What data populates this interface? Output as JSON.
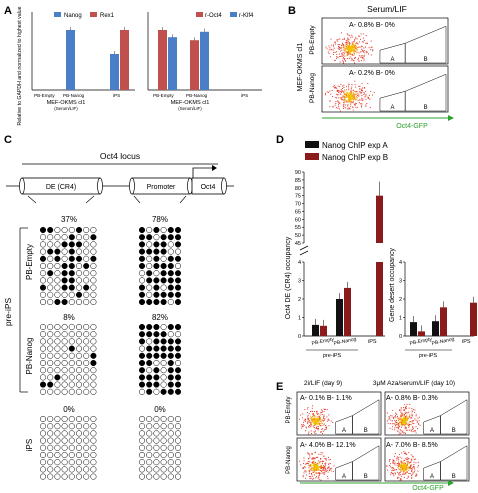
{
  "panel_letters": [
    "A",
    "B",
    "C",
    "D",
    "E"
  ],
  "panelA": {
    "ylabel": "Relative to GAPDH and normalized to highest value",
    "left": {
      "legend": [
        "Nanog",
        "Rex1"
      ],
      "categories": [
        "PB-Empty",
        "PB-Nanog",
        "iPS"
      ],
      "group_label": "MEF-OKMS cl1",
      "group_sub": "(Serum/LIF)"
    },
    "right": {
      "legend": [
        "r-Oct4",
        "r-Klf4"
      ],
      "categories": [
        "PB-Empty",
        "PB-Nanog",
        "iPS"
      ],
      "group_label": "MEF-OKMS cl1",
      "group_sub": "(Serum/LIF)"
    }
  },
  "panelB": {
    "title": "Serum/LIF",
    "side_label": "MEF-OKMS cl1",
    "rows": [
      {
        "label": "PB-Empty",
        "stats": "A- 0.8% B- 0%"
      },
      {
        "label": "PB-Nanog",
        "stats": "A- 0.2% B- 0%"
      }
    ],
    "gate_a": "A",
    "gate_b": "B",
    "xlabel": "Oct4-GFP"
  },
  "panelC": {
    "locus_title": "Oct4 locus",
    "regions": [
      "DE (CR4)",
      "Promoter",
      "Oct4"
    ],
    "group_label": "pre-iPS",
    "rows": [
      {
        "label": "PB-Empty",
        "de_pct": "37%",
        "pr_pct": "78%"
      },
      {
        "label": "PB-Nanog",
        "de_pct": "8%",
        "pr_pct": "82%"
      },
      {
        "label": "iPS",
        "de_pct": "0%",
        "pr_pct": "0%"
      }
    ]
  },
  "panelD": {
    "legend": [
      "Nanog ChIP exp A",
      "Nanog ChIP exp B"
    ],
    "colors": {
      "expA": "#111111",
      "expB": "#8b1a1a"
    },
    "left_ylabel": "Oct4 DE (CR4) occupancy",
    "right_ylabel": "Gene desert occupancy",
    "left_ticks_low": [
      "0",
      "1",
      "2",
      "3",
      "4"
    ],
    "left_ticks_high": [
      "45",
      "50",
      "55",
      "60",
      "65",
      "70",
      "75",
      "80",
      "85",
      "90"
    ],
    "right_ticks": [
      "0",
      "1",
      "2",
      "3",
      "4"
    ],
    "categories": [
      "PB-Empty",
      "PB-Nanog",
      "iPS"
    ],
    "group_label": "pre-iPS"
  },
  "panelE": {
    "col_titles": [
      "2i/LIF (day 9)",
      "3μM Aza/serum/LIF (day 10)"
    ],
    "row_labels": [
      "PB-Empty",
      "PB-Nanog"
    ],
    "stats": [
      [
        "A- 0.1% B- 1.1%",
        "A- 0.8% B- 0.3%"
      ],
      [
        "A- 4.0% B- 12.1%",
        "A- 7.0% B- 8.5%"
      ]
    ],
    "gate_a": "A",
    "gate_b": "B",
    "xlabel": "Oct4-GFP"
  },
  "chart_data": [
    {
      "type": "bar",
      "panel": "A-left",
      "categories": [
        "PB-Empty",
        "PB-Nanog",
        "iPS"
      ],
      "series": [
        {
          "name": "Nanog",
          "values": [
            0,
            1.0,
            0.6
          ]
        },
        {
          "name": "Rex1",
          "values": [
            0,
            0,
            1.0
          ]
        }
      ],
      "ylim": [
        0,
        1.2
      ]
    },
    {
      "type": "bar",
      "panel": "A-right",
      "categories": [
        "PB-Empty",
        "PB-Nanog",
        "iPS"
      ],
      "series": [
        {
          "name": "r-Oct4",
          "values": [
            1.0,
            0.83,
            0
          ]
        },
        {
          "name": "r-Klf4",
          "values": [
            0.88,
            0.97,
            0
          ]
        }
      ],
      "ylim": [
        0,
        1.2
      ]
    },
    {
      "type": "bar",
      "panel": "D-left",
      "ylabel": "Oct4 DE (CR4) occupancy",
      "categories": [
        "PB-Empty",
        "PB-Nanog",
        "iPS"
      ],
      "series": [
        {
          "name": "Nanog ChIP exp A",
          "values": [
            0.6,
            2.0,
            null
          ]
        },
        {
          "name": "Nanog ChIP exp B",
          "values": [
            0.55,
            2.6,
            75
          ]
        }
      ]
    },
    {
      "type": "bar",
      "panel": "D-right",
      "ylabel": "Gene desert occupancy",
      "categories": [
        "PB-Empty",
        "PB-Nanog",
        "iPS"
      ],
      "series": [
        {
          "name": "Nanog ChIP exp A",
          "values": [
            0.75,
            0.8,
            null
          ]
        },
        {
          "name": "Nanog ChIP exp B",
          "values": [
            0.25,
            1.55,
            1.8
          ]
        }
      ],
      "ylim": [
        0,
        4
      ]
    }
  ]
}
